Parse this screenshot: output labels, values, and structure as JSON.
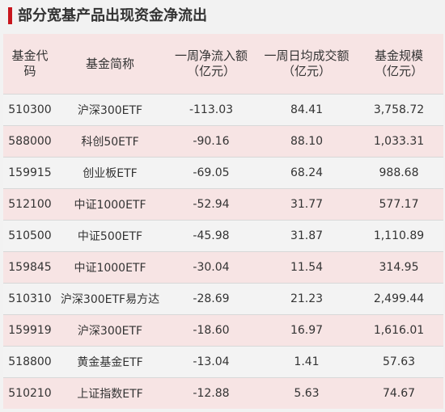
{
  "title": "部分宽基产品出现资金净流出",
  "headers": [
    {
      "line1": "基金代",
      "line2": "码"
    },
    {
      "line1": "基金简称",
      "line2": ""
    },
    {
      "line1": "一周净流入额",
      "line2": "（亿元）"
    },
    {
      "line1": "一周日均成交额",
      "line2": "（亿元）"
    },
    {
      "line1": "基金规模",
      "line2": "（亿元）"
    }
  ],
  "rows": [
    {
      "code": "510300",
      "name": "沪深300ETF",
      "net_inflow": "-113.03",
      "avg_turnover": "84.41",
      "scale": "3,758.72"
    },
    {
      "code": "588000",
      "name": "科创50ETF",
      "net_inflow": "-90.16",
      "avg_turnover": "88.10",
      "scale": "1,033.31"
    },
    {
      "code": "159915",
      "name": "创业板ETF",
      "net_inflow": "-69.05",
      "avg_turnover": "68.24",
      "scale": "988.68"
    },
    {
      "code": "512100",
      "name": "中证1000ETF",
      "net_inflow": "-52.94",
      "avg_turnover": "31.77",
      "scale": "577.17"
    },
    {
      "code": "510500",
      "name": "中证500ETF",
      "net_inflow": "-45.98",
      "avg_turnover": "31.87",
      "scale": "1,110.89"
    },
    {
      "code": "159845",
      "name": "中证1000ETF",
      "net_inflow": "-30.04",
      "avg_turnover": "11.54",
      "scale": "314.95"
    },
    {
      "code": "510310",
      "name": "沪深300ETF易方达",
      "net_inflow": "-28.69",
      "avg_turnover": "21.23",
      "scale": "2,499.44"
    },
    {
      "code": "159919",
      "name": "沪深300ETF",
      "net_inflow": "-18.60",
      "avg_turnover": "16.97",
      "scale": "1,616.01"
    },
    {
      "code": "518800",
      "name": "黄金基金ETF",
      "net_inflow": "-13.04",
      "avg_turnover": "1.41",
      "scale": "57.63"
    },
    {
      "code": "510210",
      "name": "上证指数ETF",
      "net_inflow": "-12.88",
      "avg_turnover": "5.63",
      "scale": "74.67"
    }
  ],
  "colors": {
    "accent": "#c8161d",
    "header_bg": "#f7e4e4",
    "band_bg": "#f7e4e4",
    "plain_bg": "#f3f3f3"
  }
}
